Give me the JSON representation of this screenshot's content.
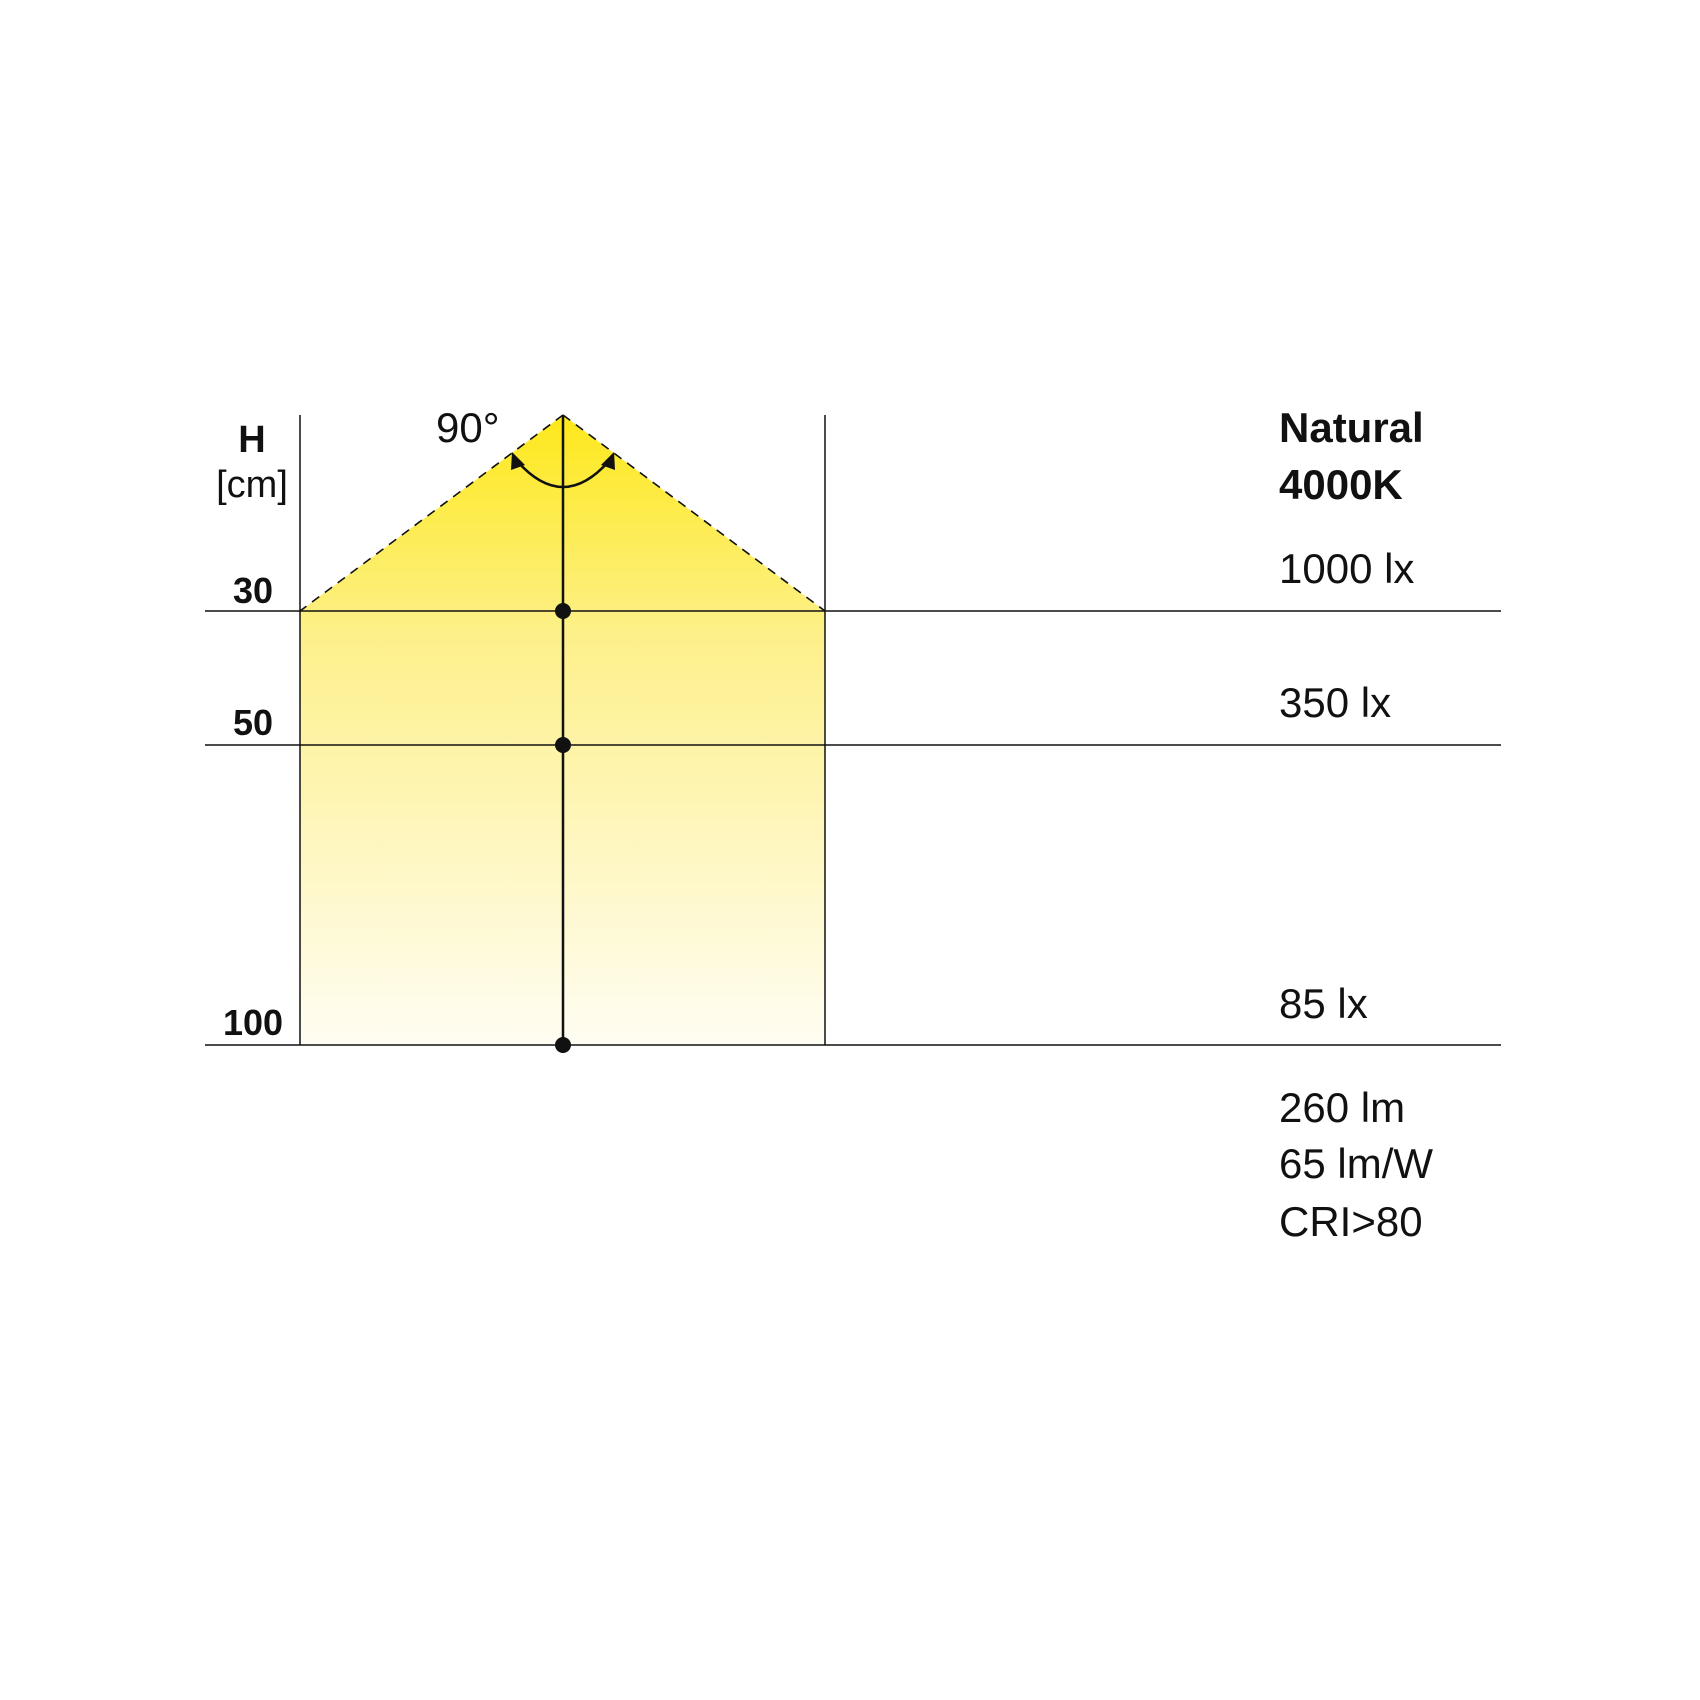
{
  "axis": {
    "label": "H",
    "unit": "[cm]"
  },
  "beam_angle": "90°",
  "heights": [
    {
      "label": "30",
      "value": 30,
      "illuminance": "1000 lx"
    },
    {
      "label": "50",
      "value": 50,
      "illuminance": "350 lx"
    },
    {
      "label": "100",
      "value": 100,
      "illuminance": "85 lx"
    }
  ],
  "title": {
    "line1": "Natural",
    "line2": "4000K"
  },
  "specs": {
    "flux": "260 lm",
    "efficacy": "65 lm/W",
    "cri": "CRI>80"
  },
  "colors": {
    "beam_top": "#fde81a",
    "beam_bottom": "#fffdf3",
    "line": "#111111"
  }
}
